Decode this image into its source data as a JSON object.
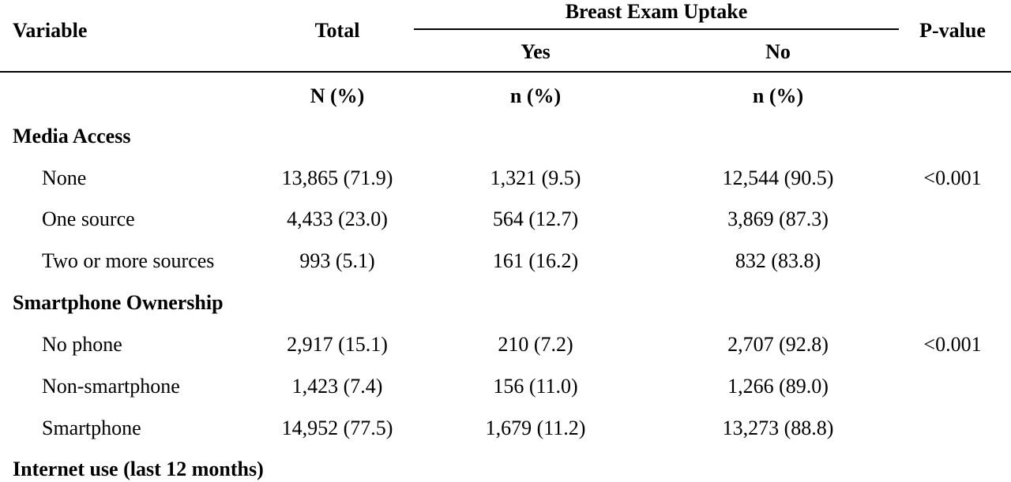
{
  "table": {
    "headers": {
      "variable": "Variable",
      "total": "Total",
      "group": "Breast Exam Uptake",
      "yes": "Yes",
      "no": "No",
      "pvalue": "P-value"
    },
    "units": {
      "total": "N (%)",
      "yes": "n (%)",
      "no": "n (%)"
    },
    "sections": [
      {
        "title": "Media Access",
        "rows": [
          {
            "label": "None",
            "total": "13,865 (71.9)",
            "yes": "1,321 (9.5)",
            "no": "12,544 (90.5)",
            "p": "<0.001"
          },
          {
            "label": "One source",
            "total": "4,433 (23.0)",
            "yes": "564 (12.7)",
            "no": "3,869 (87.3)",
            "p": ""
          },
          {
            "label": "Two or more sources",
            "total": "993 (5.1)",
            "yes": "161 (16.2)",
            "no": "832 (83.8)",
            "p": ""
          }
        ]
      },
      {
        "title": "Smartphone Ownership",
        "rows": [
          {
            "label": "No phone",
            "total": "2,917 (15.1)",
            "yes": "210 (7.2)",
            "no": "2,707 (92.8)",
            "p": "<0.001"
          },
          {
            "label": "Non-smartphone",
            "total": "1,423 (7.4)",
            "yes": "156 (11.0)",
            "no": "1,266 (89.0)",
            "p": ""
          },
          {
            "label": "Smartphone",
            "total": "14,952 (77.5)",
            "yes": "1,679 (11.2)",
            "no": "13,273 (88.8)",
            "p": ""
          }
        ]
      },
      {
        "title": "Internet use (last 12 months)",
        "rows": []
      }
    ]
  }
}
